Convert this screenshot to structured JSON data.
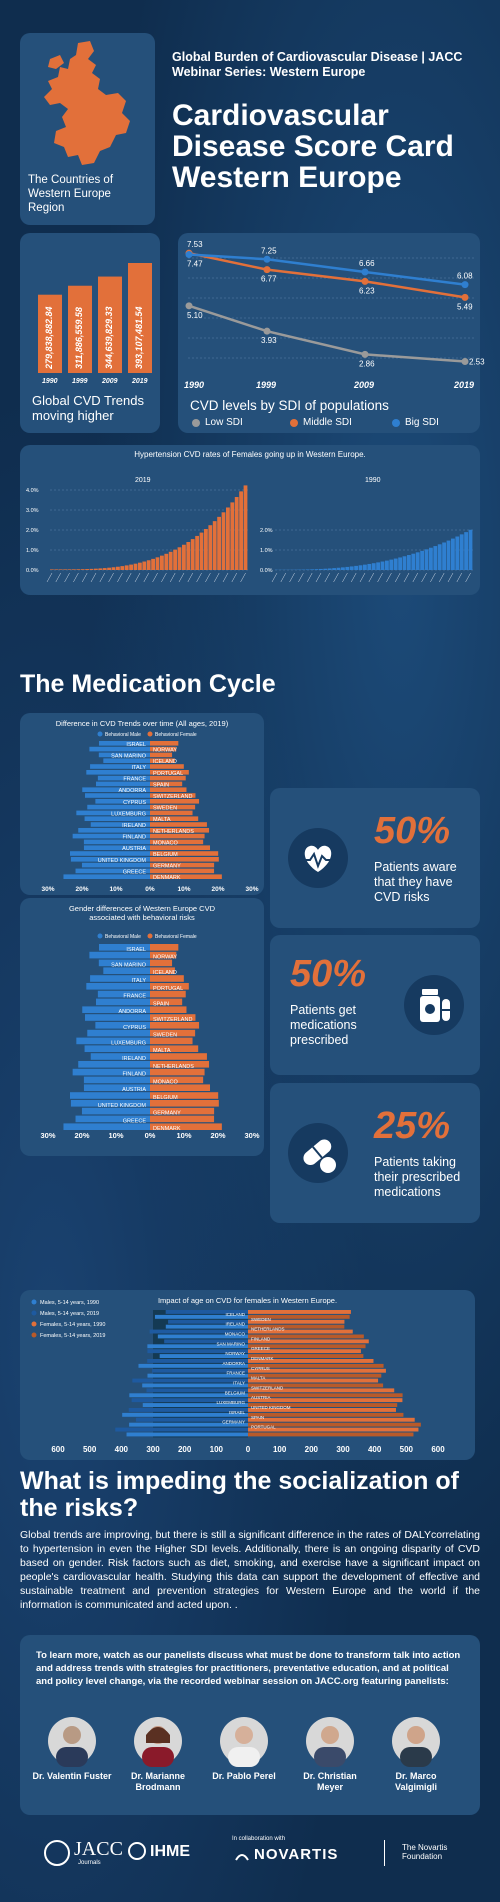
{
  "header": {
    "subtitle": "Global Burden of Cardiovascular Disease | JACC Webinar Series: Western Europe",
    "title": "Cardiovascular Disease Score Card Western Europe",
    "map_caption": "The Countries of Western Europe Region"
  },
  "trends": {
    "caption": "Global CVD Trends moving higher",
    "chart_data": {
      "type": "bar",
      "categories": [
        "1990",
        "1999",
        "2009",
        "2019"
      ],
      "values": [
        279838882.84,
        311886559.58,
        344639829.33,
        393107481.54
      ],
      "labels": [
        "279,838,882.84",
        "311,886,559.58",
        "344,639,829.33",
        "393,107,481.54"
      ]
    }
  },
  "sdi": {
    "caption": "CVD levels by SDI of populations",
    "chart_data": {
      "type": "line",
      "categories": [
        "1990",
        "1999",
        "2009",
        "2019"
      ],
      "series": [
        {
          "name": "Low SDI",
          "values": [
            5.1,
            3.93,
            2.86,
            2.53
          ],
          "labels": [
            "5.10",
            "3.93",
            "2.86",
            "2.53"
          ]
        },
        {
          "name": "Middle SDI",
          "values": [
            7.53,
            6.77,
            6.23,
            5.49
          ],
          "labels": [
            "7.53",
            "6.77",
            "6.23",
            "5.49"
          ]
        },
        {
          "name": "Big SDI",
          "values": [
            7.47,
            7.25,
            6.66,
            6.08
          ],
          "labels": [
            "7.47",
            "7.25",
            "6.66",
            "6.08"
          ]
        }
      ],
      "colors": [
        "#9a9a9a",
        "#e2703a",
        "#2f7fd0"
      ]
    }
  },
  "hypertension": {
    "title": "Hypertension CVD rates of Females going up in Western Europe.",
    "left_label": "2019",
    "right_label": "1990",
    "left_ticks": [
      "4.0%",
      "3.0%",
      "2.0%",
      "1.0%",
      "0.0%"
    ],
    "right_ticks": [
      "2.0%",
      "1.0%",
      "0.0%"
    ]
  },
  "medication": {
    "title": "The Medication Cycle",
    "diff_title": "Difference in CVD Trends over time (All ages, 2019)",
    "gender_title": "Gender differences of Western Europe CVD associated with behavioral risks",
    "legend_male": "Behavioral Male",
    "legend_female": "Behavioral Female",
    "left_countries": [
      "ISRAEL",
      "SAN MARINO",
      "ITALY",
      "FRANCE",
      "ANDORRA",
      "CYPRUS",
      "LUXEMBURG",
      "IRELAND",
      "FINLAND",
      "AUSTRIA",
      "UNITED KINGDOM",
      "GREECE"
    ],
    "right_countries": [
      "NORWAY",
      "ICELAND",
      "PORTUGAL",
      "SPAIN",
      "SWITZERLAND",
      "SWEDEN",
      "MALTA",
      "NETHERLANDS",
      "MONACO",
      "BELGIUM",
      "GERMANY",
      "DENMARK"
    ],
    "axis": [
      "30%",
      "20%",
      "10%",
      "0%",
      "10%",
      "20%",
      "30%"
    ],
    "stats": [
      {
        "value": "50%",
        "text": "Patients aware that they have CVD risks"
      },
      {
        "value": "50%",
        "text": "Patients get medications prescribed"
      },
      {
        "value": "25%",
        "text": "Patients taking their prescribed medications"
      }
    ]
  },
  "age": {
    "title": "Impact of age on CVD for females in Western Europe.",
    "legend": [
      "Males, 5-14 years, 1990",
      "Males, 5-14 years, 2019",
      "Females, 5-14 years, 1990",
      "Females, 5-14 years, 2019"
    ],
    "left_countries": [
      "ICELAND",
      "IRELAND",
      "MONACO",
      "SAN MARINO",
      "NORWAY",
      "ANDORRA",
      "FRANCE",
      "ITALY",
      "BELGIUM",
      "LUXEMBURG",
      "ISRAEL",
      "GERMANY"
    ],
    "right_countries": [
      "SWEDEN",
      "NETHERLANDS",
      "FINLAND",
      "GREECE",
      "DENMARK",
      "CYPRUS",
      "MALTA",
      "SWITZERLAND",
      "AUSTRIA",
      "UNITED KINGDOM",
      "SPAIN",
      "PORTUGAL"
    ],
    "axis": [
      "600",
      "500",
      "400",
      "300",
      "200",
      "100",
      "0",
      "100",
      "200",
      "300",
      "400",
      "500",
      "600"
    ]
  },
  "impeding": {
    "title": "What is impeding the socialization of the risks?",
    "body": "Global trends are improving, but there is still a significant difference in the rates of DALYcorrelating to hypertension in even the Higher SDI levels. Additionally, there is an ongoing disparity of CVD based on gender. Risk factors such as diet, smoking, and exercise have a significant impact on people's cardiovascular health. Studying this data can support the development of effective and sustainable treatment and prevention strategies for Western Europe and the world if the information is communicated and acted upon. ."
  },
  "learn": {
    "text": "To learn more, watch as our panelists discuss what must be done to transform talk into action and address trends with strategies for practitioners, preventative education, and at political and policy level change, via the recorded webinar session on JACC.org featuring panelists:",
    "panelists": [
      "Dr. Valentin Fuster",
      "Dr. Marianne Brodmann",
      "Dr. Pablo Perel",
      "Dr. Christian Meyer",
      "Dr. Marco Valgimigli"
    ]
  },
  "footer": {
    "jacc": "JACC",
    "jacc_sub": "Journals",
    "ihme": "IHME",
    "collab": "In collaboration with",
    "novartis": "NOVARTIS",
    "foundation": "The Novartis Foundation"
  }
}
